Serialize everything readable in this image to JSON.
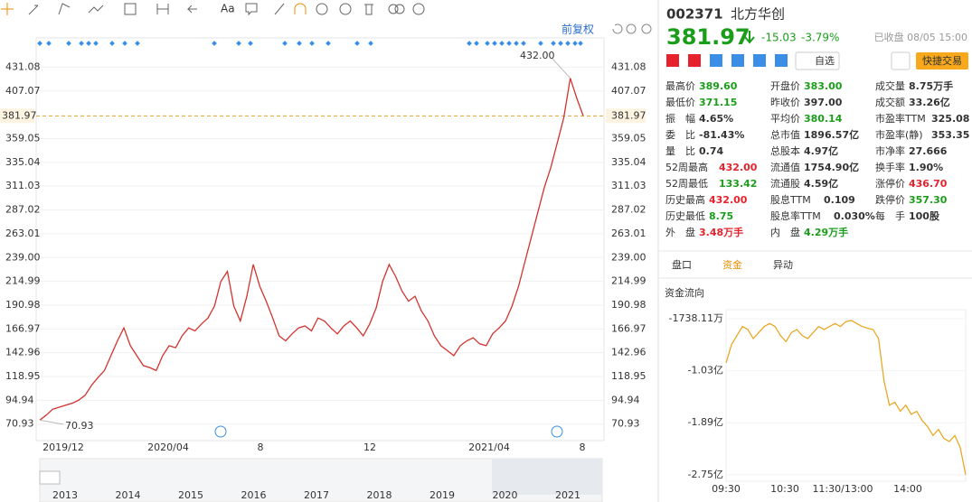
{
  "toolbar": {
    "font_button": "Aa",
    "adjust": "前复权"
  },
  "chart": {
    "type": "line",
    "ylim": [
      54.3,
      460.6
    ],
    "yticks": [
      431.08,
      407.07,
      359.05,
      335.04,
      311.03,
      287.02,
      263.01,
      {
        "value": 239,
        "label": "239.00"
      },
      214.99,
      190.98,
      166.97,
      142.96,
      118.95,
      94.94,
      70.93
    ],
    "last_price": 381.97,
    "high_label": "432.00",
    "low_label": "70.93",
    "x_labels": [
      "2019/12",
      "2020/04",
      "8",
      "12",
      "2021/04",
      "8"
    ],
    "nav_years": [
      "2013",
      "2014",
      "2015",
      "2016",
      "2017",
      "2018",
      "2019",
      "2020",
      "2021"
    ],
    "values": [
      75,
      80,
      86,
      88,
      90,
      92,
      95,
      100,
      110,
      118,
      125,
      140,
      155,
      168,
      150,
      140,
      130,
      128,
      125,
      140,
      150,
      148,
      160,
      168,
      165,
      172,
      178,
      190,
      215,
      225,
      190,
      175,
      200,
      232,
      210,
      195,
      178,
      160,
      155,
      162,
      168,
      170,
      165,
      178,
      175,
      168,
      162,
      170,
      175,
      168,
      160,
      172,
      188,
      215,
      232,
      220,
      205,
      195,
      200,
      185,
      175,
      160,
      150,
      145,
      140,
      150,
      155,
      158,
      152,
      150,
      162,
      168,
      175,
      190,
      210,
      235,
      260,
      285,
      310,
      330,
      355,
      380,
      420,
      400,
      382
    ],
    "color": "#d2332f",
    "price_line_color": "#e0a030"
  },
  "quote": {
    "code": "002371",
    "name": "北方华创",
    "price": "381.97",
    "change": "-15.03",
    "pct": "-3.79%",
    "status": "已收盘 08/05 15:00",
    "watch": "自选",
    "trade": "快捷交易",
    "color": "#1a9e1a"
  },
  "stats": [
    [
      {
        "label": "最高价",
        "value": "389.60",
        "color": "#1a9e1a"
      },
      {
        "label": "最低价",
        "value": "371.15",
        "color": "#1a9e1a"
      },
      {
        "label": "振　幅",
        "value": "4.65%",
        "color": "#333333"
      },
      {
        "label": "委　比",
        "value": "-81.43%",
        "color": "#333333"
      },
      {
        "label": "量　比",
        "value": "0.74",
        "color": "#333333"
      },
      {
        "label": "52周最高",
        "value": "432.00",
        "color": "#e6222c"
      },
      {
        "label": "52周最低",
        "value": "133.42",
        "color": "#1a9e1a"
      },
      {
        "label": "历史最高",
        "value": "432.00",
        "color": "#e6222c"
      },
      {
        "label": "历史最低",
        "value": "8.75",
        "color": "#1a9e1a"
      },
      {
        "label": "外　盘",
        "value": "3.48万手",
        "color": "#e6222c"
      }
    ],
    [
      {
        "label": "开盘价",
        "value": "383.00",
        "color": "#1a9e1a"
      },
      {
        "label": "昨收价",
        "value": "397.00",
        "color": "#333333"
      },
      {
        "label": "平均价",
        "value": "380.14",
        "color": "#1a9e1a"
      },
      {
        "label": "总市值",
        "value": "1896.57亿",
        "color": "#333333"
      },
      {
        "label": "总股本",
        "value": "4.97亿",
        "color": "#333333"
      },
      {
        "label": "流通值",
        "value": "1754.90亿",
        "color": "#333333"
      },
      {
        "label": "流通股",
        "value": "4.59亿",
        "color": "#333333"
      },
      {
        "label": "股息TTM",
        "value": "0.109",
        "color": "#333333"
      },
      {
        "label": "股息率TTM",
        "value": "0.030%",
        "color": "#333333"
      },
      {
        "label": "内　盘",
        "value": "4.29万手",
        "color": "#1a9e1a"
      }
    ],
    [
      {
        "label": "成交量",
        "value": "8.75万手",
        "color": "#333333"
      },
      {
        "label": "成交额",
        "value": "33.26亿",
        "color": "#333333"
      },
      {
        "label": "市盈率TTM",
        "value": "325.08",
        "color": "#333333"
      },
      {
        "label": "市盈率(静)",
        "value": "353.35",
        "color": "#333333"
      },
      {
        "label": "市净率",
        "value": "27.666",
        "color": "#333333"
      },
      {
        "label": "换手率",
        "value": "1.90%",
        "color": "#333333"
      },
      {
        "label": "涨停价",
        "value": "436.70",
        "color": "#e6222c"
      },
      {
        "label": "跌停价",
        "value": "357.30",
        "color": "#1a9e1a"
      },
      {
        "label": "每　手",
        "value": "100股",
        "color": "#333333"
      }
    ]
  ],
  "tabs": [
    "盘口",
    "资金",
    "异动"
  ],
  "fund_flow": {
    "type": "line",
    "title": "资金流向",
    "ylim": [
      -2.856,
      -0.022
    ],
    "yticks": [
      {
        "value": -0.173811,
        "label": "-1738.11万"
      },
      {
        "value": -1.03,
        "label": "-1.03亿"
      },
      {
        "value": -1.89,
        "label": "-1.89亿"
      },
      {
        "value": -2.75,
        "label": "-2.75亿"
      }
    ],
    "x_labels": [
      "09:30",
      "10:30",
      "11:30/13:00",
      "14:00"
    ],
    "values": [
      -0.9,
      -0.6,
      -0.45,
      -0.3,
      -0.35,
      -0.5,
      -0.4,
      -0.3,
      -0.25,
      -0.3,
      -0.45,
      -0.55,
      -0.4,
      -0.35,
      -0.45,
      -0.5,
      -0.4,
      -0.3,
      -0.35,
      -0.3,
      -0.25,
      -0.3,
      -0.22,
      -0.2,
      -0.25,
      -0.3,
      -0.33,
      -0.35,
      -0.5,
      -1.2,
      -1.6,
      -1.55,
      -1.7,
      -1.6,
      -1.75,
      -1.7,
      -1.85,
      -1.95,
      -2.1,
      -2.0,
      -2.15,
      -2.2,
      -2.1,
      -2.3,
      -2.75
    ],
    "color": "#e8a317"
  }
}
